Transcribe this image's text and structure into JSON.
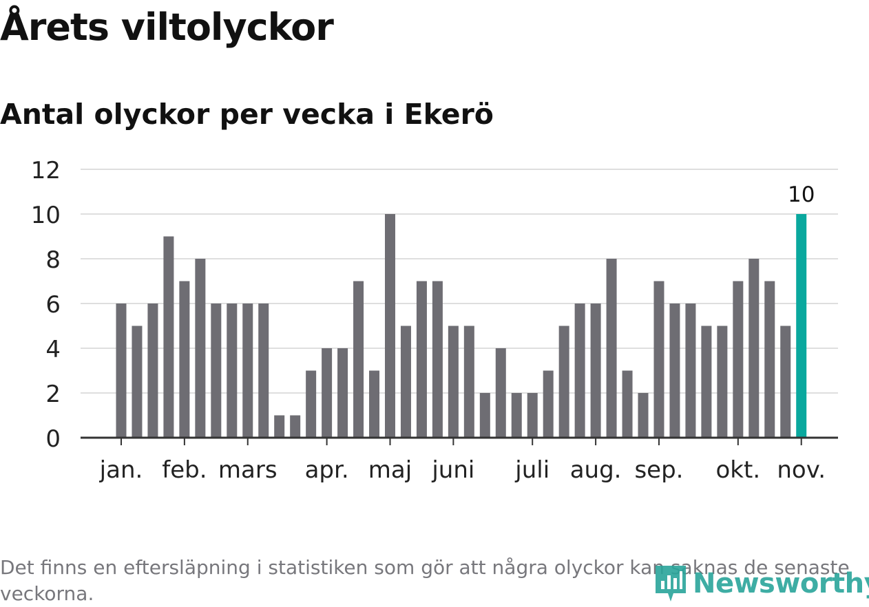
{
  "title": "Årets viltolyckor",
  "subtitle": "Antal olyckor per vecka i Ekerö",
  "footnote": "Det finns en eftersläpning i statistiken som gör att några olyckor kan saknas de senaste veckorna.",
  "brand": {
    "name": "Newsworthy",
    "icon": "bar-chart-speech-icon"
  },
  "colors": {
    "bar": "#6e6d73",
    "highlight": "#0aa89e",
    "grid": "#dedede",
    "axis": "#333333",
    "brand": "#2aa59b"
  },
  "chart_data": {
    "type": "bar",
    "title": "Antal olyckor per vecka i Ekerö",
    "xlabel": "",
    "ylabel": "",
    "ylim": [
      0,
      12
    ],
    "yticks": [
      0,
      2,
      4,
      6,
      8,
      10,
      12
    ],
    "grid": true,
    "values": [
      6,
      5,
      6,
      9,
      7,
      8,
      6,
      6,
      6,
      6,
      1,
      1,
      3,
      4,
      4,
      7,
      3,
      10,
      5,
      7,
      7,
      5,
      5,
      2,
      4,
      2,
      2,
      3,
      5,
      6,
      6,
      8,
      3,
      2,
      7,
      6,
      6,
      5,
      5,
      7,
      8,
      7,
      5,
      10
    ],
    "month_ticks": [
      {
        "label": "jan.",
        "bar_index": 0
      },
      {
        "label": "feb.",
        "bar_index": 4
      },
      {
        "label": "mars",
        "bar_index": 8
      },
      {
        "label": "apr.",
        "bar_index": 13
      },
      {
        "label": "maj",
        "bar_index": 17
      },
      {
        "label": "juni",
        "bar_index": 21
      },
      {
        "label": "juli",
        "bar_index": 26
      },
      {
        "label": "aug.",
        "bar_index": 30
      },
      {
        "label": "sep.",
        "bar_index": 34
      },
      {
        "label": "okt.",
        "bar_index": 39
      },
      {
        "label": "nov.",
        "bar_index": 43
      }
    ],
    "highlight_index": 43,
    "highlight_label": "10"
  }
}
